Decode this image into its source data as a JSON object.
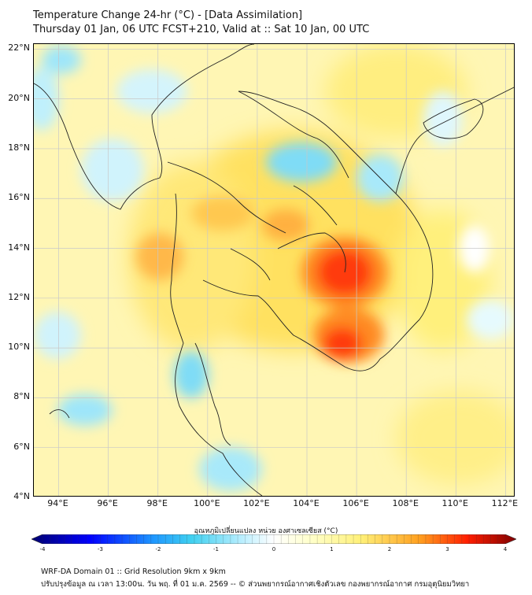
{
  "header": {
    "title": "Temperature Change 24-hr (°C) - [Data Assimilation]",
    "subtitle": "Thursday 01 Jan, 06 UTC FCST+210, Valid at :: Sat 10 Jan, 00 UTC"
  },
  "map": {
    "lat_labels": [
      "22°N",
      "20°N",
      "18°N",
      "16°N",
      "14°N",
      "12°N",
      "10°N",
      "8°N",
      "6°N",
      "4°N"
    ],
    "lon_labels": [
      "94°E",
      "96°E",
      "98°E",
      "100°E",
      "102°E",
      "104°E",
      "106°E",
      "108°E",
      "110°E",
      "112°E"
    ],
    "lat_values": [
      22,
      20,
      18,
      16,
      14,
      12,
      10,
      8,
      6,
      4
    ],
    "lon_values": [
      94,
      96,
      98,
      100,
      102,
      104,
      106,
      108,
      110,
      112
    ],
    "lat_range": [
      4,
      22.2
    ],
    "lon_range": [
      93,
      112.4
    ]
  },
  "colorbar": {
    "label": "อุณหภูมิเปลี่ยนแปลง หน่วย องศาเซลเซียส (°C)",
    "ticks": [
      "-4",
      "-3",
      "-2",
      "-1",
      "0",
      "1",
      "2",
      "3",
      "4"
    ],
    "tick_values": [
      -4,
      -3,
      -2,
      -1,
      0,
      1,
      2,
      3,
      4
    ],
    "range": [
      -4,
      4
    ],
    "colors": {
      "min": "#000070",
      "blue": "#0000ff",
      "mid_blue": "#1e96ff",
      "cyan": "#40d0f0",
      "light_cyan": "#c0f0ff",
      "white": "#ffffff",
      "light_yellow": "#ffffc8",
      "yellow": "#fff078",
      "orange": "#ffa020",
      "red": "#ff1e00",
      "max": "#800000"
    }
  },
  "footer": {
    "line1": "WRF-DA Domain 01 :: Grid Resolution 9km x 9km",
    "line2": "ปรับปรุงข้อมูล ณ เวลา 13:00น. วัน พฤ. ที่ 01 ม.ค. 2569 -- © ส่วนพยากรณ์อากาศเชิงตัวเลข กองพยากรณ์อากาศ กรมอุตุนิยมวิทยา"
  }
}
